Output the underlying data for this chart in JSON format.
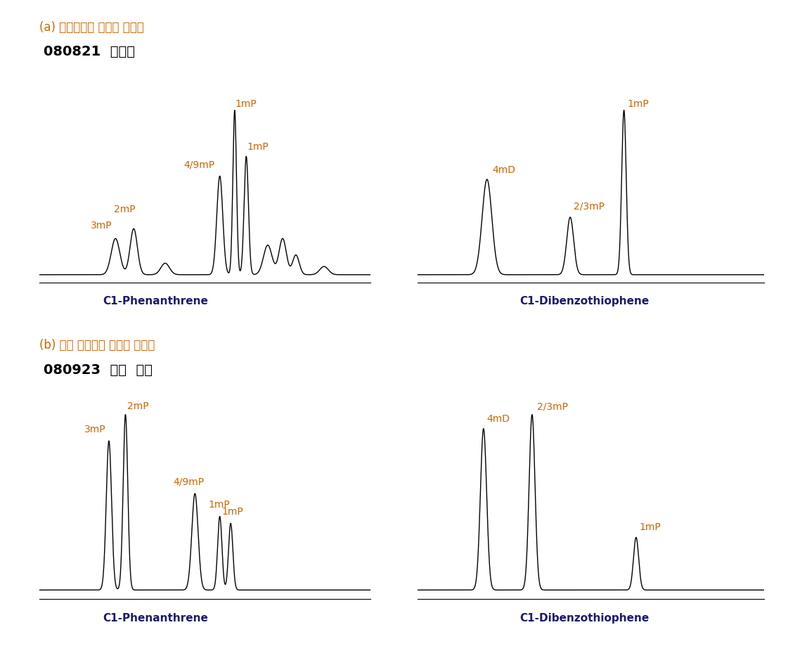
{
  "title_a": "(a) 가의도에서 채취된 표착유",
  "title_b": "(b) 신안 증도에서 채취된 표착유",
  "label_a": "080821  가의도",
  "label_b": "080923  신안  증도",
  "title_color": "#cc6600",
  "label_color": "#000000",
  "bg_color": "#ffffff",
  "axis_label_color": "#1a1a6e",
  "peak_label_color": "#cc6600",
  "line_color": "#000000",
  "sublabel_a_left": "C1-Phenanthrene",
  "sublabel_a_right": "C1-Dibenzothiophene",
  "sublabel_b_left": "C1-Phenanthrene",
  "sublabel_b_right": "C1-Dibenzothiophene"
}
